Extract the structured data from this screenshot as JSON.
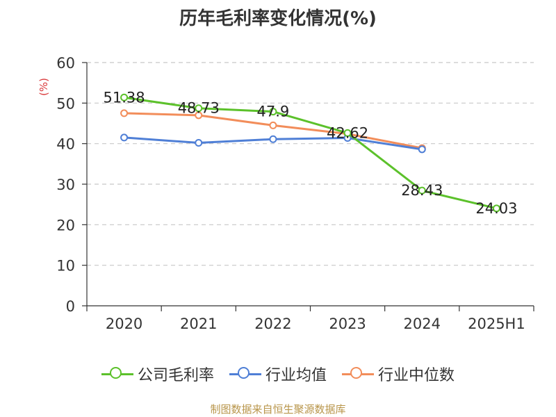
{
  "title": "历年毛利率变化情况(%)",
  "source": "制图数据来自恒生聚源数据库",
  "chart_data": {
    "type": "line",
    "title": "历年毛利率变化情况(%)",
    "ylabel": "(%)",
    "xlabel": "",
    "categories": [
      "2020",
      "2021",
      "2022",
      "2023",
      "2024",
      "2025H1"
    ],
    "ylim": [
      0,
      60
    ],
    "yticks": [
      0,
      10,
      20,
      30,
      40,
      50,
      60
    ],
    "grid": true,
    "legend_position": "bottom",
    "series": [
      {
        "name": "公司毛利率",
        "color": "#5cc12b",
        "values": [
          51.38,
          48.73,
          47.9,
          42.62,
          28.43,
          24.03
        ],
        "labels": [
          "51.38",
          "48.73",
          "47.9",
          "42.62",
          "28.43",
          "24.03"
        ]
      },
      {
        "name": "行业均值",
        "color": "#4f7fd6",
        "values": [
          41.5,
          40.2,
          41.1,
          41.4,
          38.6,
          null
        ]
      },
      {
        "name": "行业中位数",
        "color": "#f28d5a",
        "values": [
          47.5,
          47.0,
          44.5,
          42.4,
          38.9,
          null
        ]
      }
    ]
  }
}
